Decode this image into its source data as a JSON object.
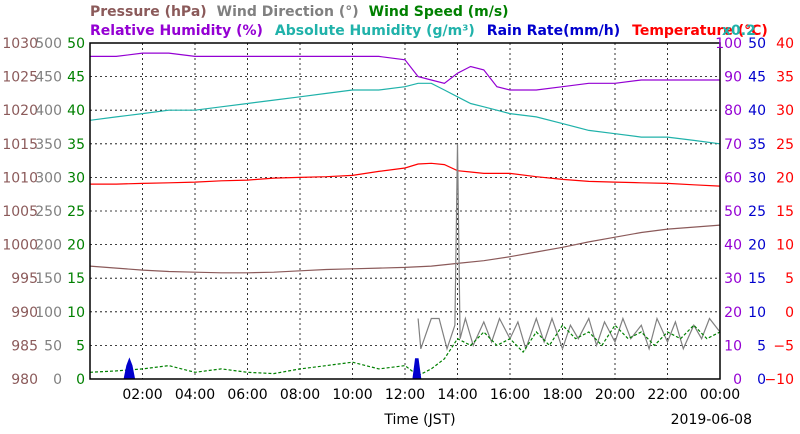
{
  "chart_data": {
    "type": "line",
    "date": "2019-06-08",
    "xlabel": "Time (JST)",
    "x_ticks": [
      "02:00",
      "04:00",
      "06:00",
      "08:00",
      "10:00",
      "12:00",
      "14:00",
      "16:00",
      "18:00",
      "20:00",
      "22:00",
      "00:00"
    ],
    "x_range_hours": [
      0,
      24
    ],
    "grid": true,
    "legend_top": [
      {
        "text": "Pressure (hPa)",
        "color": "#8b5a5a"
      },
      {
        "text": "Wind Direction (°)",
        "color": "#808080"
      },
      {
        "text": "Wind Speed (m/s)",
        "color": "#008000"
      }
    ],
    "legend_second": [
      {
        "text": "Relative Humidity (%)",
        "color": "#9400d3"
      },
      {
        "text": "Absolute Humidity (g/m³)",
        "color": "#20b2aa"
      },
      {
        "text": "Rain Rate(mm/h)",
        "color": "#0000cd"
      },
      {
        "text": "Temperature (°C)",
        "color": "#ff0000"
      }
    ],
    "scale_note": "x0.2",
    "axes": {
      "pressure": {
        "color": "#8b5a5a",
        "range": [
          980,
          1030
        ],
        "ticks": [
          980,
          985,
          990,
          995,
          1000,
          1005,
          1010,
          1015,
          1020,
          1025,
          1030
        ]
      },
      "wind_direction": {
        "color": "#808080",
        "range": [
          0,
          500
        ],
        "ticks": [
          0,
          50,
          100,
          150,
          200,
          250,
          300,
          350,
          400,
          450,
          500
        ]
      },
      "wind_speed": {
        "color": "#008000",
        "range": [
          0,
          50
        ],
        "ticks": [
          0,
          5,
          10,
          15,
          20,
          25,
          30,
          35,
          40,
          45,
          50
        ]
      },
      "humidity": {
        "color": "#9400d3",
        "range": [
          0,
          100
        ],
        "ticks": [
          0,
          10,
          20,
          30,
          40,
          50,
          60,
          70,
          80,
          90,
          100
        ]
      },
      "rain_rate": {
        "color": "#0000cd",
        "range": [
          0,
          50
        ],
        "ticks": [
          0,
          5,
          10,
          15,
          20,
          25,
          30,
          35,
          40,
          45,
          50
        ]
      },
      "temperature": {
        "color": "#ff0000",
        "range": [
          -10,
          40
        ],
        "ticks": [
          -10,
          -5,
          0,
          5,
          10,
          15,
          20,
          25,
          30,
          35,
          40
        ]
      }
    },
    "series": [
      {
        "name": "Pressure (hPa)",
        "axis": "pressure",
        "color": "#8b5a5a",
        "x": [
          0,
          1,
          2,
          3,
          4,
          5,
          6,
          7,
          8,
          9,
          10,
          11,
          12,
          13,
          14,
          15,
          16,
          17,
          18,
          19,
          20,
          21,
          22,
          23,
          24
        ],
        "y": [
          996.8,
          996.5,
          996.2,
          996.0,
          995.9,
          995.8,
          995.8,
          995.9,
          996.1,
          996.3,
          996.4,
          996.5,
          996.6,
          996.8,
          997.2,
          997.6,
          998.2,
          998.9,
          999.6,
          1000.4,
          1001.1,
          1001.8,
          1002.3,
          1002.6,
          1002.9
        ]
      },
      {
        "name": "Relative Humidity (%)",
        "axis": "humidity",
        "color": "#9400d3",
        "x": [
          0,
          1,
          2,
          3,
          4,
          5,
          6,
          7,
          8,
          9,
          10,
          11,
          12,
          12.5,
          13,
          13.5,
          14,
          14.5,
          15,
          15.5,
          16,
          17,
          18,
          19,
          20,
          21,
          22,
          23,
          24
        ],
        "y": [
          96,
          96,
          97,
          97,
          96,
          96,
          96,
          96,
          96,
          96,
          96,
          96,
          95,
          90,
          89,
          88,
          91,
          93,
          92,
          87,
          86,
          86,
          87,
          88,
          88,
          89,
          89,
          89,
          89
        ]
      },
      {
        "name": "Absolute Humidity (g/m³)",
        "axis": "humidity",
        "color": "#20b2aa",
        "x": [
          0,
          1,
          2,
          3,
          4,
          5,
          6,
          7,
          8,
          9,
          10,
          11,
          12,
          12.5,
          13,
          13.5,
          14,
          14.5,
          15,
          15.5,
          16,
          17,
          18,
          19,
          20,
          21,
          22,
          23,
          24
        ],
        "y": [
          77,
          78,
          79,
          80,
          80,
          81,
          82,
          83,
          84,
          85,
          86,
          86,
          87,
          88,
          88,
          86,
          84,
          82,
          81,
          80,
          79,
          78,
          76,
          74,
          73,
          72,
          72,
          71,
          70
        ]
      },
      {
        "name": "Temperature (°C)",
        "axis": "temperature",
        "color": "#ff0000",
        "x": [
          0,
          1,
          2,
          3,
          4,
          5,
          6,
          7,
          8,
          9,
          10,
          11,
          12,
          12.5,
          13,
          13.5,
          14,
          14.5,
          15,
          16,
          17,
          18,
          19,
          20,
          21,
          22,
          23,
          24
        ],
        "y": [
          19,
          19,
          19.1,
          19.2,
          19.3,
          19.5,
          19.6,
          19.9,
          20,
          20.1,
          20.3,
          20.9,
          21.4,
          22,
          22.1,
          21.9,
          21,
          20.8,
          20.6,
          20.6,
          20.1,
          19.7,
          19.4,
          19.3,
          19.2,
          19.1,
          18.9,
          18.7
        ]
      },
      {
        "name": "Wind Direction (°)",
        "axis": "wind_direction",
        "color": "#808080",
        "x": [
          12.5,
          12.6,
          13.0,
          13.3,
          13.6,
          13.9,
          14.0,
          14.1,
          14.3,
          14.6,
          15.0,
          15.3,
          15.6,
          16.0,
          16.3,
          16.6,
          17.0,
          17.3,
          17.6,
          18.0,
          18.3,
          18.6,
          19.0,
          19.3,
          19.6,
          20.0,
          20.3,
          20.6,
          21.0,
          21.3,
          21.6,
          22.0,
          22.3,
          22.6,
          23.0,
          23.3,
          23.6,
          24.0
        ],
        "y": [
          90,
          45,
          90,
          90,
          45,
          80,
          350,
          60,
          90,
          50,
          85,
          55,
          90,
          60,
          85,
          45,
          90,
          55,
          90,
          45,
          80,
          60,
          90,
          50,
          85,
          55,
          90,
          60,
          80,
          45,
          90,
          55,
          85,
          45,
          80,
          60,
          90,
          70
        ]
      },
      {
        "name": "Wind Speed (m/s)",
        "axis": "wind_speed",
        "color": "#008000",
        "x": [
          0,
          1,
          2,
          3,
          4,
          5,
          6,
          7,
          8,
          9,
          10,
          11,
          12,
          12.5,
          13,
          13.5,
          14,
          14.5,
          15,
          15.5,
          16,
          16.5,
          17,
          17.5,
          18,
          18.5,
          19,
          19.5,
          20,
          20.5,
          21,
          21.5,
          22,
          22.5,
          23,
          23.5,
          24
        ],
        "y": [
          1,
          1.2,
          1.5,
          2,
          1,
          1.5,
          1,
          0.8,
          1.5,
          2,
          2.5,
          1.5,
          2,
          0.5,
          1.5,
          3,
          6,
          5,
          7,
          5,
          6,
          4,
          7,
          5,
          8,
          6,
          7,
          5,
          8,
          6,
          7,
          5,
          7,
          6,
          8,
          6,
          7
        ]
      },
      {
        "name": "Rain Rate(mm/h)",
        "axis": "rain_rate",
        "color": "#0000cd",
        "x": [
          0,
          1.3,
          1.4,
          1.5,
          1.6,
          1.7,
          12.3,
          12.4,
          12.5,
          12.6,
          24
        ],
        "y": [
          0,
          0,
          2,
          3,
          2,
          0,
          0,
          3,
          3,
          0,
          0
        ]
      }
    ]
  }
}
